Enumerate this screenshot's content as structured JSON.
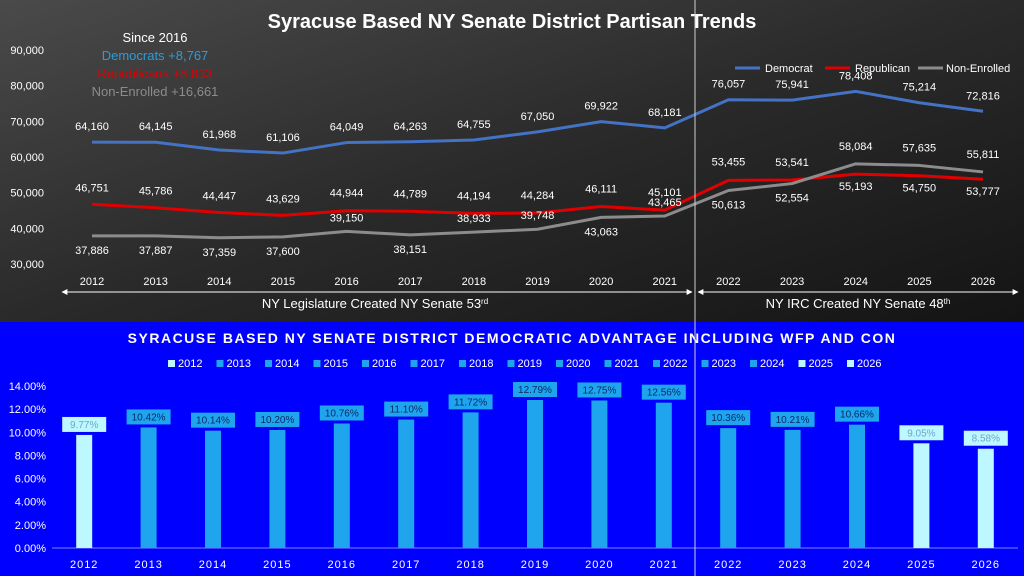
{
  "chart_data": [
    {
      "type": "line",
      "title": "Syracuse Based NY Senate District Partisan Trends",
      "x": [
        "2012",
        "2013",
        "2014",
        "2015",
        "2016",
        "2017",
        "2018",
        "2019",
        "2020",
        "2021",
        "2022",
        "2023",
        "2024",
        "2025",
        "2026"
      ],
      "ylim": [
        30000,
        90000
      ],
      "yticks": [
        "30,000",
        "40,000",
        "50,000",
        "60,000",
        "70,000",
        "80,000",
        "90,000"
      ],
      "ytick_values": [
        30000,
        40000,
        50000,
        60000,
        70000,
        80000,
        90000
      ],
      "grid": false,
      "legend_position": "top-right",
      "series": [
        {
          "name": "Democrat",
          "color": "#4472C4",
          "values": [
            64160,
            64145,
            61968,
            61106,
            64049,
            64263,
            64755,
            67050,
            69922,
            68181,
            76057,
            75941,
            78408,
            75214,
            72816
          ],
          "labels": [
            "64,160",
            "64,145",
            "61,968",
            "61,106",
            "64,049",
            "64,263",
            "64,755",
            "67,050",
            "69,922",
            "68,181",
            "76,057",
            "75,941",
            "78,408",
            "75,214",
            "72,816"
          ]
        },
        {
          "name": "Republican",
          "color": "#E00000",
          "values": [
            46751,
            45786,
            44447,
            43629,
            44944,
            44789,
            44194,
            44284,
            46111,
            45101,
            53455,
            53541,
            55193,
            54750,
            53777
          ],
          "labels": [
            "46,751",
            "45,786",
            "44,447",
            "43,629",
            "44,944",
            "44,789",
            "44,194",
            "44,284",
            "46,111",
            "45,101",
            "53,455",
            "53,541",
            "55,193",
            "54,750",
            "53,777"
          ]
        },
        {
          "name": "Non-Enrolled",
          "color": "#8C8C8C",
          "values": [
            37886,
            37887,
            37359,
            37600,
            39150,
            38151,
            38933,
            39748,
            43063,
            43465,
            50613,
            52554,
            58084,
            57635,
            55811
          ],
          "labels": [
            "37,886",
            "37,887",
            "37,359",
            "37,600",
            "39,150",
            "38,151",
            "38,933",
            "39,748",
            "43,063",
            "43,465",
            "50,613",
            "52,554",
            "58,084",
            "57,635",
            "55,811"
          ]
        }
      ],
      "annotations": {
        "since_title": "Since 2016",
        "since_items": [
          {
            "text": "Democrats +8,767",
            "color": "#2E9BD6"
          },
          {
            "text": "Republicans +8,833",
            "color": "#E00000"
          },
          {
            "text": "Non-Enrolled +16,661",
            "color": "#8C8C8C"
          }
        ],
        "era_left": "NY Legislature Created NY Senate 53",
        "era_left_sup": "rd",
        "era_right": "NY IRC Created NY Senate 48",
        "era_right_sup": "th"
      }
    },
    {
      "type": "bar",
      "title": "SYRACUSE BASED NY SENATE DISTRICT DEMOCRATIC ADVANTAGE INCLUDING WFP AND CON",
      "categories": [
        "2012",
        "2013",
        "2014",
        "2015",
        "2016",
        "2017",
        "2018",
        "2019",
        "2020",
        "2021",
        "2022",
        "2023",
        "2024",
        "2025",
        "2026"
      ],
      "values": [
        9.77,
        10.42,
        10.14,
        10.2,
        10.76,
        11.1,
        11.72,
        12.79,
        12.75,
        12.56,
        10.36,
        10.21,
        10.66,
        9.05,
        8.58
      ],
      "labels": [
        "9.77%",
        "10.42%",
        "10.14%",
        "10.20%",
        "10.76%",
        "11.10%",
        "11.72%",
        "12.79%",
        "12.75%",
        "12.56%",
        "10.36%",
        "10.21%",
        "10.66%",
        "9.05%",
        "8.58%"
      ],
      "ylim": [
        0,
        14
      ],
      "yticks": [
        "0.00%",
        "2.00%",
        "4.00%",
        "6.00%",
        "8.00%",
        "10.00%",
        "12.00%",
        "14.00%"
      ],
      "ytick_values": [
        0,
        2,
        4,
        6,
        8,
        10,
        12,
        14
      ],
      "legend_position": "top",
      "legend": [
        "2012",
        "2013",
        "2014",
        "2015",
        "2016",
        "2017",
        "2018",
        "2019",
        "2020",
        "2021",
        "2022",
        "2023",
        "2024",
        "2025",
        "2026"
      ],
      "colors": {
        "background": "#0000FF",
        "bar_default": "#1EA5EE",
        "bar_light": "#BDF7FF",
        "light_categories": [
          "2012",
          "2025",
          "2026"
        ]
      }
    }
  ]
}
